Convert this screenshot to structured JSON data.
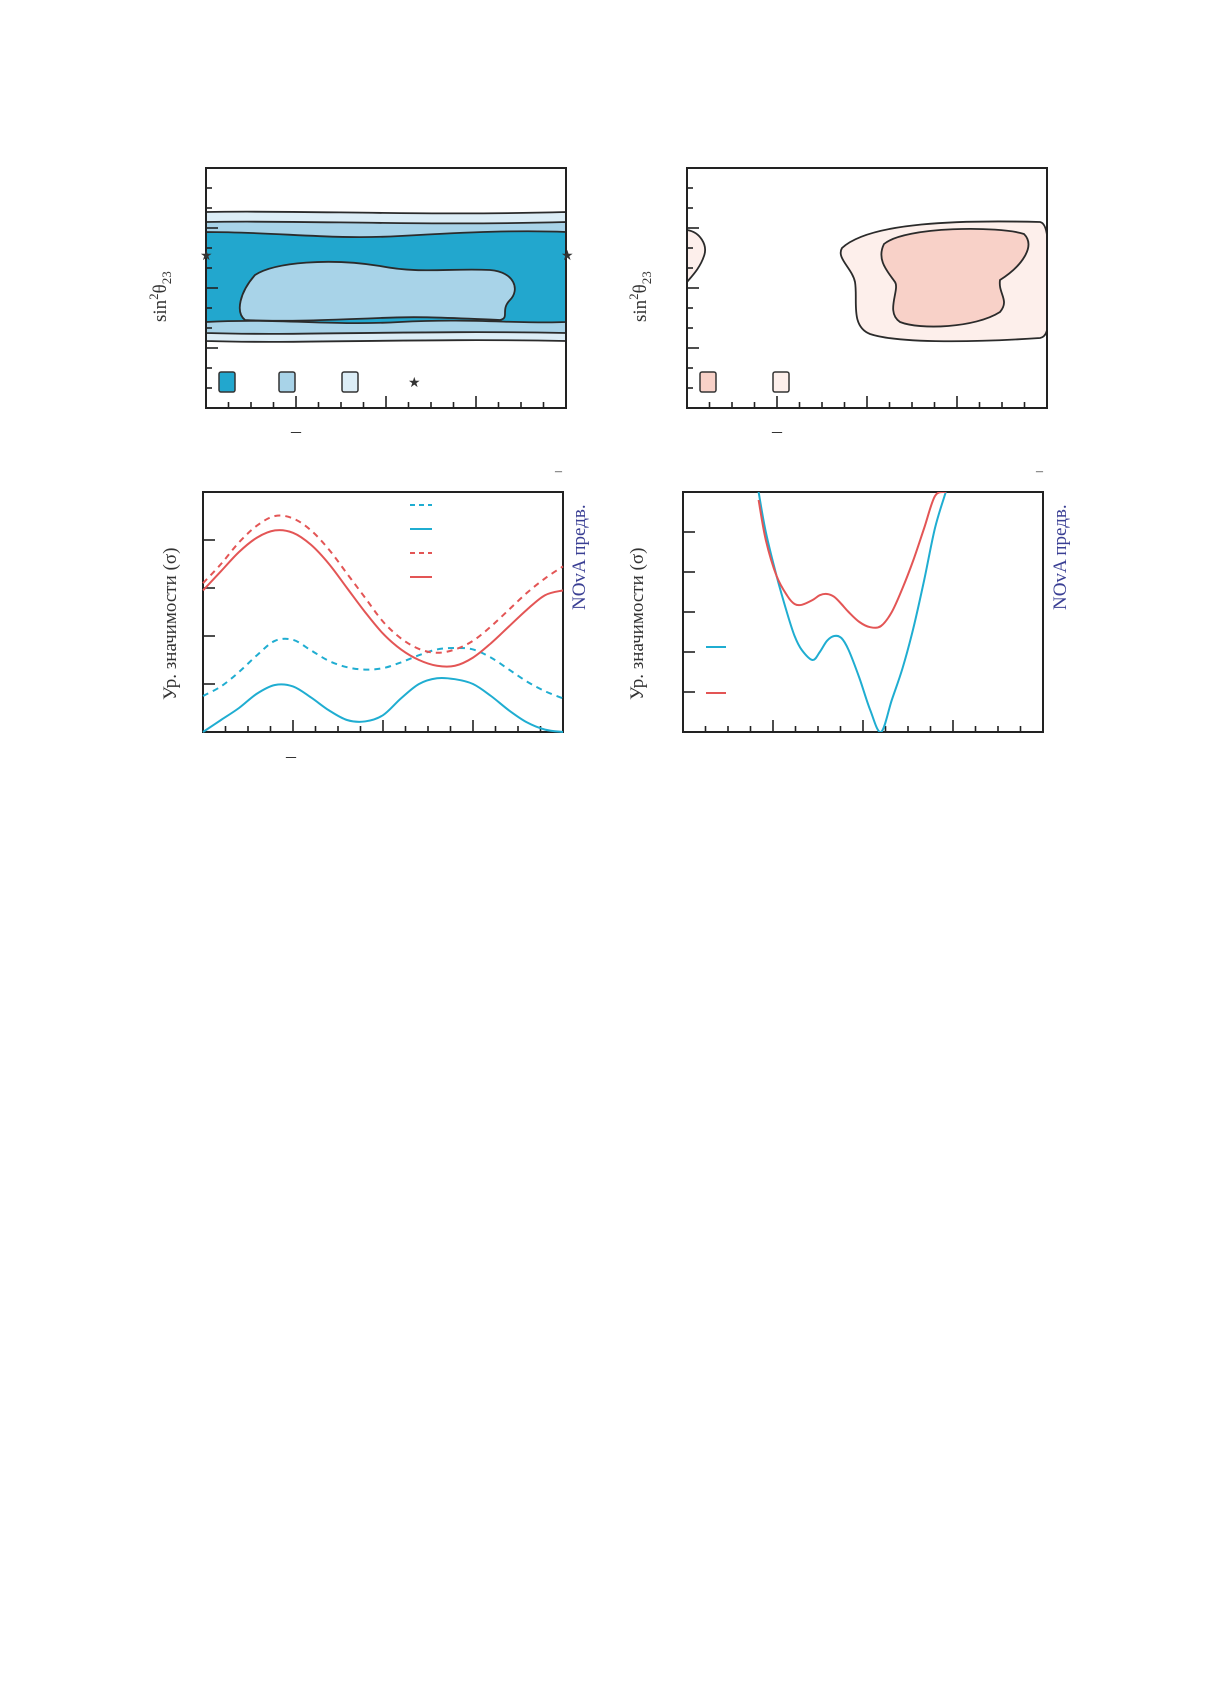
{
  "colors": {
    "nh_dark": "#22a7ce",
    "nh_mid": "#a8d3e8",
    "nh_light": "#dcedf6",
    "ih_dark": "#f8d1c8",
    "ih_light": "#fdefeb",
    "cyan_line": "#1fadd1",
    "red_line": "#e35555",
    "nova_label": "#3a3f94"
  },
  "panel_a": {
    "ylabel_main": "sin",
    "ylabel_sup": "2",
    "ylabel_theta": "θ",
    "ylabel_sub": "23",
    "xtick_minus": "–",
    "best_fit_marker": "★",
    "legend_star": "★"
  },
  "panel_b": {
    "ylabel_main": "sin",
    "ylabel_sup": "2",
    "ylabel_theta": "θ",
    "ylabel_sub": "23",
    "xtick_minus": "–"
  },
  "panel_c": {
    "ylabel": "Ур. значимости (σ)",
    "side_label": "NOvA предв.",
    "xtick_minus": "–",
    "corner_dash": "–"
  },
  "panel_d": {
    "ylabel": "Ур. значимости (σ)",
    "side_label": "NOvA предв.",
    "corner_dash": "–"
  },
  "chart_data": [
    {
      "type": "contour",
      "panel": "a",
      "ylabel": "sin²θ23",
      "regions": [
        {
          "level": "outer",
          "color": "nh_light"
        },
        {
          "level": "middle",
          "color": "nh_mid"
        },
        {
          "level": "inner",
          "color": "nh_dark"
        }
      ],
      "best_fit_markers": 2
    },
    {
      "type": "contour",
      "panel": "b",
      "ylabel": "sin²θ23",
      "regions": [
        {
          "level": "outer",
          "color": "ih_light"
        },
        {
          "level": "inner",
          "color": "ih_dark"
        }
      ]
    },
    {
      "type": "line",
      "panel": "c",
      "ylabel": "Ур. значимости (σ)",
      "x": [
        0,
        0.05,
        0.1,
        0.15,
        0.2,
        0.25,
        0.3,
        0.35,
        0.4,
        0.45,
        0.5,
        0.55,
        0.6,
        0.65,
        0.7,
        0.75,
        0.8,
        0.85,
        0.9,
        0.95,
        1.0
      ],
      "ylim": [
        0,
        5
      ],
      "series": [
        {
          "style": "dashed",
          "color": "cyan_line",
          "values": [
            0.75,
            0.95,
            1.25,
            1.6,
            1.9,
            1.92,
            1.7,
            1.48,
            1.35,
            1.3,
            1.33,
            1.45,
            1.6,
            1.72,
            1.75,
            1.72,
            1.55,
            1.3,
            1.05,
            0.85,
            0.7
          ]
        },
        {
          "style": "solid",
          "color": "cyan_line",
          "values": [
            0.0,
            0.25,
            0.5,
            0.8,
            0.98,
            0.95,
            0.72,
            0.45,
            0.25,
            0.22,
            0.35,
            0.7,
            1.0,
            1.12,
            1.1,
            1.0,
            0.75,
            0.45,
            0.2,
            0.05,
            0.0
          ]
        },
        {
          "style": "dashed",
          "color": "red_line",
          "values": [
            3.1,
            3.5,
            3.95,
            4.3,
            4.5,
            4.45,
            4.2,
            3.8,
            3.3,
            2.8,
            2.3,
            1.95,
            1.73,
            1.65,
            1.72,
            1.9,
            2.2,
            2.55,
            2.9,
            3.2,
            3.45
          ]
        },
        {
          "style": "solid",
          "color": "red_line",
          "values": [
            2.95,
            3.35,
            3.75,
            4.05,
            4.2,
            4.15,
            3.9,
            3.5,
            3.0,
            2.5,
            2.05,
            1.72,
            1.5,
            1.38,
            1.38,
            1.55,
            1.85,
            2.2,
            2.55,
            2.85,
            2.95
          ]
        }
      ]
    },
    {
      "type": "line",
      "panel": "d",
      "ylabel": "Ур. значимости (σ)",
      "x": [
        0.21,
        0.23,
        0.26,
        0.29,
        0.31,
        0.33,
        0.36,
        0.38,
        0.4,
        0.42,
        0.44,
        0.46,
        0.49,
        0.52,
        0.55,
        0.58,
        0.61,
        0.64,
        0.67,
        0.7,
        0.73
      ],
      "ylim": [
        0,
        6
      ],
      "series": [
        {
          "style": "solid",
          "color": "cyan_line",
          "values": [
            6.0,
            5.0,
            3.9,
            2.95,
            2.4,
            2.05,
            1.8,
            2.0,
            2.28,
            2.4,
            2.35,
            2.05,
            1.35,
            0.55,
            0.0,
            0.8,
            1.6,
            2.6,
            3.8,
            5.1,
            6.0
          ]
        },
        {
          "style": "solid",
          "color": "red_line",
          "values": [
            5.8,
            4.8,
            3.9,
            3.4,
            3.2,
            3.18,
            3.3,
            3.42,
            3.45,
            3.38,
            3.2,
            3.0,
            2.75,
            2.62,
            2.65,
            3.0,
            3.6,
            4.3,
            5.1,
            5.9,
            6.0
          ]
        }
      ]
    }
  ]
}
